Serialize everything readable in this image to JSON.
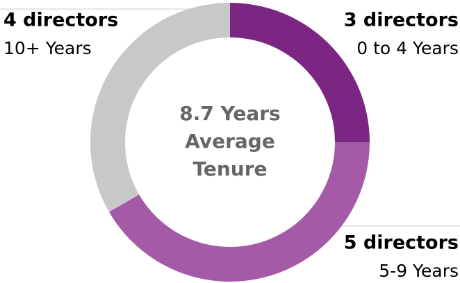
{
  "chart_data": {
    "type": "donut",
    "categories": [
      "0 to 4 Years",
      "5-9 Years",
      "10+ Years"
    ],
    "values": [
      3,
      5,
      4
    ],
    "value_labels": [
      "3 directors",
      "5 directors",
      "4 directors"
    ],
    "colors": [
      "#7b2682",
      "#a45aa6",
      "#c8c8c8"
    ],
    "center_text": [
      "8.7 Years",
      "Average",
      "Tenure"
    ]
  }
}
